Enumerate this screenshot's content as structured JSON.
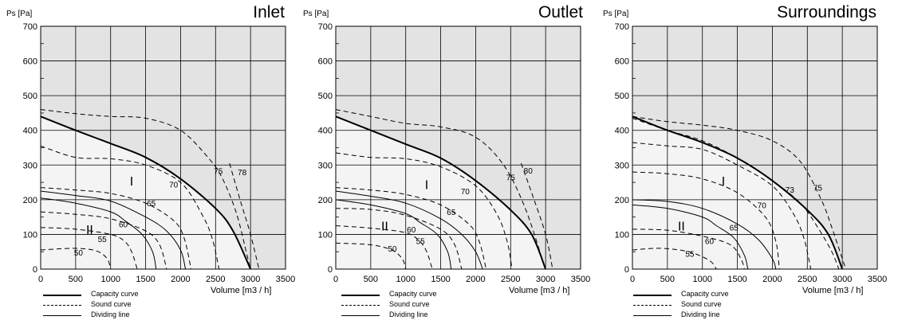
{
  "colors": {
    "background": "#ffffff",
    "above_capacity_fill": "#e3e3e3",
    "zone_fill": "#f4f4f4",
    "grid": "#000000",
    "line": "#000000"
  },
  "legend": {
    "capacity": "Capacity curve",
    "sound": "Sound curve",
    "dividing": "Dividing line"
  },
  "chart_data": [
    {
      "type": "line",
      "title": "Inlet",
      "xlabel": "Volume [m3 / h]",
      "ylabel": "Ps [Pa]",
      "xlim": [
        0,
        3500
      ],
      "ylim": [
        0,
        700
      ],
      "xticks": [
        0,
        500,
        1000,
        1500,
        2000,
        2500,
        3000,
        3500
      ],
      "yticks": [
        0,
        100,
        200,
        300,
        400,
        500,
        600,
        700
      ],
      "grid": true,
      "zone_labels": [
        {
          "text": "I",
          "x": 1300,
          "y": 255
        },
        {
          "text": "II",
          "x": 700,
          "y": 115
        }
      ],
      "capacity_curve": [
        [
          0,
          440
        ],
        [
          500,
          400
        ],
        [
          1000,
          362
        ],
        [
          1500,
          322
        ],
        [
          2000,
          260
        ],
        [
          2500,
          175
        ],
        [
          2750,
          110
        ],
        [
          3000,
          0
        ]
      ],
      "dividing_lines": [
        [
          [
            0,
            225
          ],
          [
            500,
            212
          ],
          [
            1000,
            196
          ],
          [
            1500,
            150
          ],
          [
            1800,
            110
          ],
          [
            2000,
            55
          ],
          [
            2070,
            0
          ]
        ],
        [
          [
            0,
            205
          ],
          [
            500,
            190
          ],
          [
            1000,
            165
          ],
          [
            1200,
            140
          ],
          [
            1450,
            100
          ],
          [
            1600,
            50
          ],
          [
            1650,
            0
          ]
        ]
      ],
      "sound_curves": [
        {
          "label": "78",
          "points": [
            [
              2700,
              305
            ],
            [
              2850,
              200
            ],
            [
              3000,
              100
            ],
            [
              3120,
              0
            ]
          ]
        },
        {
          "label": "75",
          "points": [
            [
              0,
              460
            ],
            [
              500,
              448
            ],
            [
              1000,
              440
            ],
            [
              1500,
              435
            ],
            [
              2000,
              400
            ],
            [
              2400,
              320
            ],
            [
              2600,
              260
            ],
            [
              2800,
              160
            ],
            [
              2950,
              40
            ],
            [
              3000,
              0
            ]
          ]
        },
        {
          "label": "70",
          "points": [
            [
              0,
              355
            ],
            [
              500,
              322
            ],
            [
              1000,
              318
            ],
            [
              1500,
              300
            ],
            [
              2000,
              250
            ],
            [
              2300,
              160
            ],
            [
              2450,
              90
            ],
            [
              2550,
              0
            ]
          ]
        },
        {
          "label": "65",
          "points": [
            [
              0,
              235
            ],
            [
              500,
              228
            ],
            [
              1000,
              218
            ],
            [
              1500,
              190
            ],
            [
              1900,
              140
            ],
            [
              2050,
              90
            ],
            [
              2150,
              0
            ]
          ]
        },
        {
          "label": "60",
          "points": [
            [
              0,
              165
            ],
            [
              500,
              158
            ],
            [
              1000,
              145
            ],
            [
              1500,
              110
            ],
            [
              1700,
              70
            ],
            [
              1800,
              0
            ]
          ]
        },
        {
          "label": "55",
          "points": [
            [
              0,
              120
            ],
            [
              500,
              115
            ],
            [
              1000,
              100
            ],
            [
              1200,
              80
            ],
            [
              1300,
              50
            ],
            [
              1380,
              0
            ]
          ]
        },
        {
          "label": "50",
          "points": [
            [
              0,
              55
            ],
            [
              500,
              60
            ],
            [
              800,
              52
            ],
            [
              950,
              30
            ],
            [
              1000,
              0
            ]
          ]
        }
      ],
      "sound_labels": [
        {
          "text": "78",
          "x": 2880,
          "y": 280
        },
        {
          "text": "75",
          "x": 2540,
          "y": 283
        },
        {
          "text": "70",
          "x": 1900,
          "y": 245
        },
        {
          "text": "65",
          "x": 1580,
          "y": 190
        },
        {
          "text": "60",
          "x": 1180,
          "y": 130
        },
        {
          "text": "55",
          "x": 880,
          "y": 87
        },
        {
          "text": "50",
          "x": 540,
          "y": 48
        }
      ]
    },
    {
      "type": "line",
      "title": "Outlet",
      "xlabel": "Volume [m3 / h]",
      "ylabel": "Ps [Pa]",
      "xlim": [
        0,
        3500
      ],
      "ylim": [
        0,
        700
      ],
      "xticks": [
        0,
        500,
        1000,
        1500,
        2000,
        2500,
        3000,
        3500
      ],
      "yticks": [
        0,
        100,
        200,
        300,
        400,
        500,
        600,
        700
      ],
      "grid": true,
      "zone_labels": [
        {
          "text": "I",
          "x": 1300,
          "y": 245
        },
        {
          "text": "II",
          "x": 700,
          "y": 125
        }
      ],
      "capacity_curve": [
        [
          0,
          440
        ],
        [
          500,
          400
        ],
        [
          1000,
          360
        ],
        [
          1500,
          320
        ],
        [
          2000,
          255
        ],
        [
          2500,
          170
        ],
        [
          2800,
          100
        ],
        [
          3000,
          0
        ]
      ],
      "dividing_lines": [
        [
          [
            0,
            225
          ],
          [
            500,
            210
          ],
          [
            1000,
            190
          ],
          [
            1500,
            145
          ],
          [
            1800,
            100
          ],
          [
            2000,
            50
          ],
          [
            2100,
            0
          ]
        ],
        [
          [
            0,
            200
          ],
          [
            500,
            185
          ],
          [
            1000,
            160
          ],
          [
            1200,
            135
          ],
          [
            1450,
            100
          ],
          [
            1600,
            50
          ],
          [
            1650,
            0
          ]
        ]
      ],
      "sound_curves": [
        {
          "label": "80",
          "points": [
            [
              2650,
              305
            ],
            [
              2800,
              220
            ],
            [
              3000,
              100
            ],
            [
              3100,
              0
            ]
          ]
        },
        {
          "label": "75",
          "points": [
            [
              0,
              460
            ],
            [
              500,
              440
            ],
            [
              1000,
              420
            ],
            [
              1500,
              410
            ],
            [
              2000,
              380
            ],
            [
              2400,
              300
            ],
            [
              2700,
              180
            ],
            [
              2950,
              30
            ],
            [
              3000,
              0
            ]
          ]
        },
        {
          "label": "70",
          "points": [
            [
              0,
              335
            ],
            [
              500,
              322
            ],
            [
              1000,
              318
            ],
            [
              1500,
              295
            ],
            [
              2000,
              240
            ],
            [
              2300,
              160
            ],
            [
              2450,
              80
            ],
            [
              2520,
              0
            ]
          ]
        },
        {
          "label": "65",
          "points": [
            [
              0,
              235
            ],
            [
              500,
              228
            ],
            [
              1000,
              215
            ],
            [
              1500,
              185
            ],
            [
              1900,
              130
            ],
            [
              2050,
              80
            ],
            [
              2150,
              0
            ]
          ]
        },
        {
          "label": "60",
          "points": [
            [
              0,
              175
            ],
            [
              500,
              172
            ],
            [
              1000,
              155
            ],
            [
              1500,
              115
            ],
            [
              1700,
              70
            ],
            [
              1800,
              0
            ]
          ]
        },
        {
          "label": "55",
          "points": [
            [
              0,
              125
            ],
            [
              500,
              118
            ],
            [
              1000,
              105
            ],
            [
              1200,
              80
            ],
            [
              1300,
              50
            ],
            [
              1380,
              0
            ]
          ]
        },
        {
          "label": "50",
          "points": [
            [
              0,
              75
            ],
            [
              500,
              70
            ],
            [
              800,
              55
            ],
            [
              950,
              30
            ],
            [
              1000,
              0
            ]
          ]
        }
      ],
      "sound_labels": [
        {
          "text": "80",
          "x": 2750,
          "y": 285
        },
        {
          "text": "75",
          "x": 2500,
          "y": 265
        },
        {
          "text": "70",
          "x": 1850,
          "y": 225
        },
        {
          "text": "65",
          "x": 1650,
          "y": 165
        },
        {
          "text": "60",
          "x": 1080,
          "y": 115
        },
        {
          "text": "55",
          "x": 1210,
          "y": 82
        },
        {
          "text": "50",
          "x": 810,
          "y": 60
        }
      ]
    },
    {
      "type": "line",
      "title": "Surroundings",
      "xlabel": "Volume [m3 / h]",
      "ylabel": "Ps [Pa]",
      "xlim": [
        0,
        3500
      ],
      "ylim": [
        0,
        700
      ],
      "xticks": [
        0,
        500,
        1000,
        1500,
        2000,
        2500,
        3000,
        3500
      ],
      "yticks": [
        0,
        100,
        200,
        300,
        400,
        500,
        600,
        700
      ],
      "grid": true,
      "zone_labels": [
        {
          "text": "I",
          "x": 1300,
          "y": 255
        },
        {
          "text": "II",
          "x": 700,
          "y": 125
        }
      ],
      "capacity_curve": [
        [
          0,
          440
        ],
        [
          500,
          400
        ],
        [
          1000,
          365
        ],
        [
          1500,
          320
        ],
        [
          2000,
          255
        ],
        [
          2500,
          170
        ],
        [
          2800,
          100
        ],
        [
          3000,
          0
        ]
      ],
      "dividing_lines": [
        [
          [
            0,
            200
          ],
          [
            500,
            195
          ],
          [
            1000,
            175
          ],
          [
            1500,
            130
          ],
          [
            1800,
            85
          ],
          [
            2000,
            30
          ],
          [
            2050,
            0
          ]
        ],
        [
          [
            0,
            185
          ],
          [
            500,
            175
          ],
          [
            1000,
            150
          ],
          [
            1200,
            125
          ],
          [
            1450,
            90
          ],
          [
            1600,
            40
          ],
          [
            1650,
            0
          ]
        ]
      ],
      "sound_curves": [
        {
          "label": "75",
          "points": [
            [
              0,
              440
            ],
            [
              500,
              425
            ],
            [
              1000,
              415
            ],
            [
              1500,
              400
            ],
            [
              2000,
              370
            ],
            [
              2400,
              310
            ],
            [
              2700,
              200
            ],
            [
              2850,
              120
            ],
            [
              3000,
              30
            ],
            [
              3050,
              0
            ]
          ]
        },
        {
          "label": "73",
          "points": [
            [
              0,
              435
            ],
            [
              500,
              400
            ],
            [
              1000,
              370
            ],
            [
              1500,
              320
            ],
            [
              2000,
              255
            ],
            [
              2400,
              190
            ],
            [
              2650,
              120
            ],
            [
              2850,
              50
            ],
            [
              2950,
              0
            ]
          ]
        },
        {
          "label": "70",
          "points": [
            [
              0,
              365
            ],
            [
              500,
              355
            ],
            [
              1000,
              345
            ],
            [
              1500,
              300
            ],
            [
              2000,
              240
            ],
            [
              2300,
              160
            ],
            [
              2450,
              90
            ],
            [
              2550,
              0
            ]
          ]
        },
        {
          "label": "65",
          "points": [
            [
              0,
              280
            ],
            [
              500,
              275
            ],
            [
              1000,
              260
            ],
            [
              1500,
              220
            ],
            [
              1900,
              150
            ],
            [
              2050,
              80
            ],
            [
              2100,
              0
            ]
          ]
        },
        {
          "label": "60",
          "points": [
            [
              0,
              115
            ],
            [
              500,
              112
            ],
            [
              1000,
              95
            ],
            [
              1400,
              70
            ],
            [
              1550,
              30
            ],
            [
              1600,
              0
            ]
          ]
        },
        {
          "label": "55",
          "points": [
            [
              0,
              55
            ],
            [
              400,
              60
            ],
            [
              800,
              50
            ],
            [
              1100,
              25
            ],
            [
              1200,
              0
            ]
          ]
        }
      ],
      "sound_labels": [
        {
          "text": "75",
          "x": 2650,
          "y": 235
        },
        {
          "text": "73",
          "x": 2250,
          "y": 230
        },
        {
          "text": "70",
          "x": 1850,
          "y": 185
        },
        {
          "text": "65",
          "x": 1450,
          "y": 120
        },
        {
          "text": "60",
          "x": 1100,
          "y": 82
        },
        {
          "text": "55",
          "x": 820,
          "y": 45
        }
      ]
    }
  ]
}
